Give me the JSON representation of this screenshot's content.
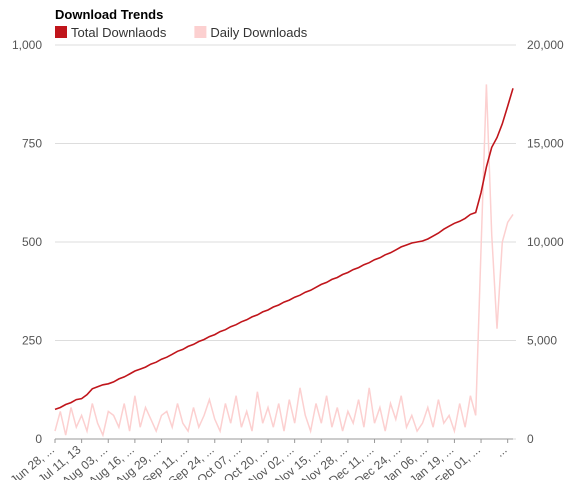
{
  "chart_data": {
    "type": "line",
    "title": "Download Trends",
    "categories": [
      "Jun 28, ...",
      null,
      null,
      null,
      null,
      "Jul 11, 13",
      null,
      null,
      null,
      null,
      "Aug 03, ...",
      null,
      null,
      null,
      null,
      "Aug 16, ...",
      null,
      null,
      null,
      null,
      "Aug 29, ...",
      null,
      null,
      null,
      null,
      "Sep 11, ...",
      null,
      null,
      null,
      null,
      "Sep 24, ...",
      null,
      null,
      null,
      null,
      "Oct 07, ...",
      null,
      null,
      null,
      null,
      "Oct 20, ...",
      null,
      null,
      null,
      null,
      "Nov 02, ...",
      null,
      null,
      null,
      null,
      "Nov 15, ...",
      null,
      null,
      null,
      null,
      "Nov 28, ...",
      null,
      null,
      null,
      null,
      "Dec 11, ...",
      null,
      null,
      null,
      null,
      "Dec 24, ...",
      null,
      null,
      null,
      null,
      "Jan 06, ...",
      null,
      null,
      null,
      null,
      "Jan 19, ...",
      null,
      null,
      null,
      null,
      "Feb 01, ...",
      null,
      null,
      null,
      null,
      "...",
      null
    ],
    "series": [
      {
        "name": "Total Downlaods",
        "color": "#c0151b",
        "axis": "y2",
        "values": [
          1500,
          1600,
          1750,
          1850,
          2000,
          2050,
          2250,
          2550,
          2650,
          2750,
          2800,
          2900,
          3050,
          3150,
          3300,
          3450,
          3550,
          3650,
          3800,
          3900,
          4050,
          4150,
          4300,
          4450,
          4550,
          4700,
          4800,
          4950,
          5050,
          5200,
          5300,
          5450,
          5550,
          5700,
          5800,
          5950,
          6050,
          6200,
          6300,
          6450,
          6550,
          6700,
          6800,
          6950,
          7050,
          7200,
          7300,
          7450,
          7550,
          7700,
          7850,
          7950,
          8100,
          8200,
          8350,
          8450,
          8600,
          8700,
          8850,
          8950,
          9100,
          9200,
          9350,
          9450,
          9600,
          9750,
          9850,
          9950,
          10000,
          10050,
          10150,
          10300,
          10450,
          10650,
          10800,
          10950,
          11050,
          11200,
          11400,
          11500,
          12500,
          13800,
          14800,
          15300,
          16000,
          16900,
          17800
        ]
      },
      {
        "name": "Daily Downloads",
        "color": "#fcd0d0",
        "values": [
          20,
          70,
          10,
          80,
          30,
          60,
          20,
          90,
          40,
          10,
          70,
          60,
          30,
          90,
          20,
          110,
          30,
          80,
          50,
          20,
          60,
          70,
          30,
          90,
          40,
          20,
          80,
          30,
          60,
          100,
          50,
          20,
          90,
          40,
          110,
          30,
          70,
          20,
          120,
          40,
          80,
          30,
          90,
          20,
          100,
          40,
          130,
          60,
          20,
          90,
          40,
          110,
          30,
          80,
          20,
          70,
          40,
          100,
          30,
          130,
          40,
          80,
          20,
          90,
          50,
          110,
          30,
          60,
          20,
          40,
          80,
          30,
          100,
          40,
          60,
          20,
          90,
          30,
          110,
          60,
          480,
          900,
          520,
          280,
          500,
          550,
          570
        ]
      }
    ],
    "ylim": [
      0,
      1000
    ],
    "yticks": [
      0,
      250,
      500,
      750,
      {
        "value": 1000,
        "label": "1,000"
      }
    ],
    "y2lim": [
      0,
      20000
    ],
    "y2ticks": [
      0,
      {
        "value": 5000,
        "label": "5,000"
      },
      {
        "value": 10000,
        "label": "10,000"
      },
      {
        "value": 15000,
        "label": "15,000"
      },
      {
        "value": 20000,
        "label": "20,000"
      }
    ],
    "grid": true,
    "legend": "top-left"
  }
}
